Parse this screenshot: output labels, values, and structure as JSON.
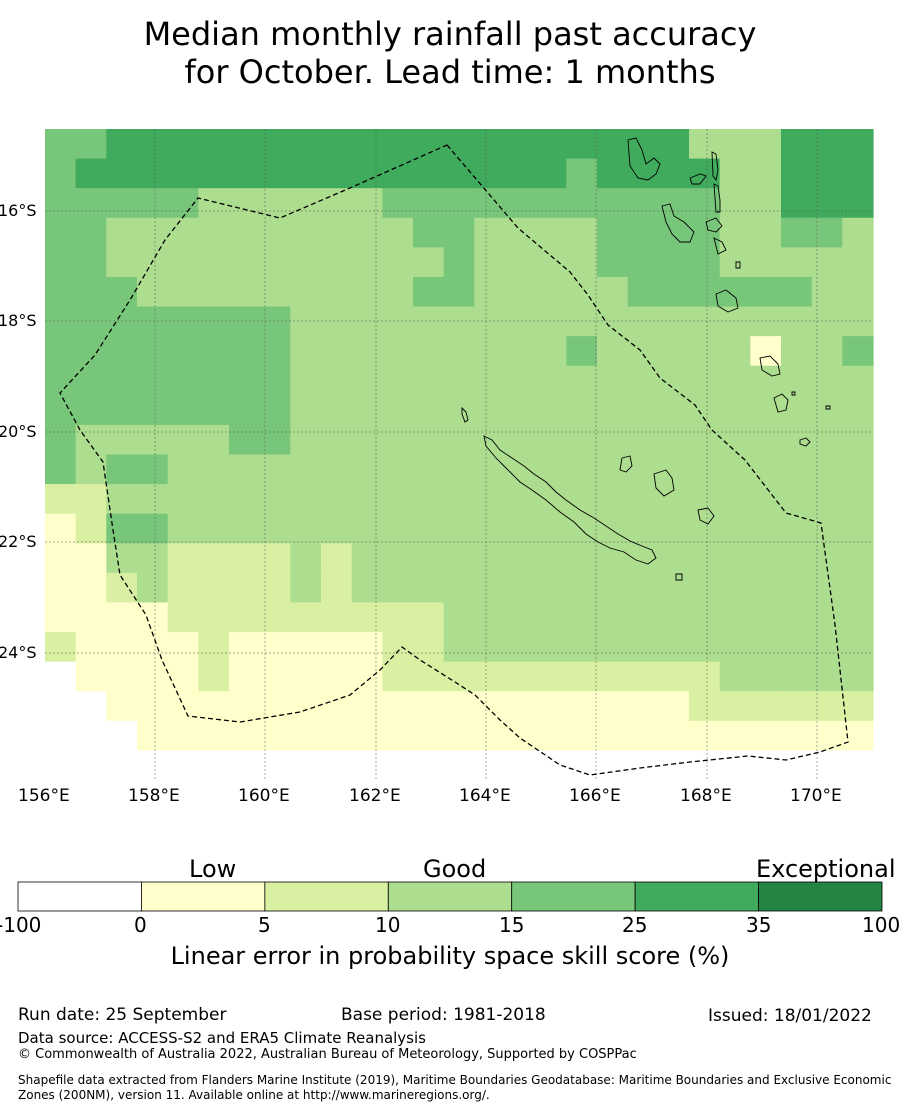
{
  "title_line1": "Median monthly rainfall past accuracy",
  "title_line2": "for October. Lead time: 1 months",
  "map": {
    "lon_labels": [
      "156°E",
      "158°E",
      "160°E",
      "162°E",
      "164°E",
      "166°E",
      "168°E",
      "170°E"
    ],
    "lat_labels": [
      "16°S",
      "18°S",
      "20°S",
      "22°S",
      "24°S"
    ]
  },
  "colorbar": {
    "categories": [
      "Low",
      "Good",
      "Exceptional"
    ],
    "ticks": [
      "-100",
      "0",
      "5",
      "10",
      "15",
      "25",
      "35",
      "100"
    ],
    "colors": [
      "#ffffff",
      "#ffffcc",
      "#d9f0a3",
      "#addd8e",
      "#78c679",
      "#41ab5d",
      "#238443"
    ],
    "title": "Linear error in probability space skill score (%)"
  },
  "chart_data": {
    "type": "heatmap",
    "title": "Median monthly rainfall past accuracy for October. Lead time: 1 months",
    "xlabel": "",
    "ylabel": "",
    "value_label": "Linear error in probability space skill score (%)",
    "bins": [
      -100,
      0,
      5,
      10,
      15,
      25,
      35,
      100
    ],
    "grid_class_rows_north_to_south": [
      "445555555555555555555333555",
      "455555555555555554555533555",
      "444443333334444444444433555",
      "443333333333443333444433443",
      "443333333333343333444433333",
      "444333333333443333344444433",
      "444444443333333333333333333",
      "444444443333333334333331334",
      "444444443333333333333333333",
      "444444443333333333333333333",
      "433333443333333333333333333",
      "434433333333333333333333333",
      "223333333333333333333333333",
      "124433333333333333333333333",
      "113322223233333333333333333",
      "112322223233333333333333333",
      "111122222222233333333333333",
      "211112111112233333333333333",
      "011112111112222222222233333",
      "001111111111111111111222222",
      "000111111111111111111111111",
      "000000000000000000000000000"
    ],
    "class_legend": {
      "0": "-100 to 0",
      "1": "0 to 5",
      "2": "5 to 10",
      "3": "10 to 15",
      "4": "15 to 25",
      "5": "25 to 35",
      "6": "35 to 100"
    }
  },
  "footer": {
    "run_date": "Run date: 25 September",
    "base_period": "Base period: 1981-2018",
    "issued": "Issued: 18/01/2022",
    "data_source": "Data source: ACCESS-S2 and ERA5 Climate Reanalysis",
    "copyright": "© Commonwealth of Australia 2022, Australian Bureau of Meteorology, Supported by COSPPac",
    "shapefile": "Shapefile data extracted from Flanders Marine Institute (2019), Maritime Boundaries Geodatabase: Maritime Boundaries and Exclusive Economic Zones (200NM), version 11. Available online at http://www.marineregions.org/."
  }
}
